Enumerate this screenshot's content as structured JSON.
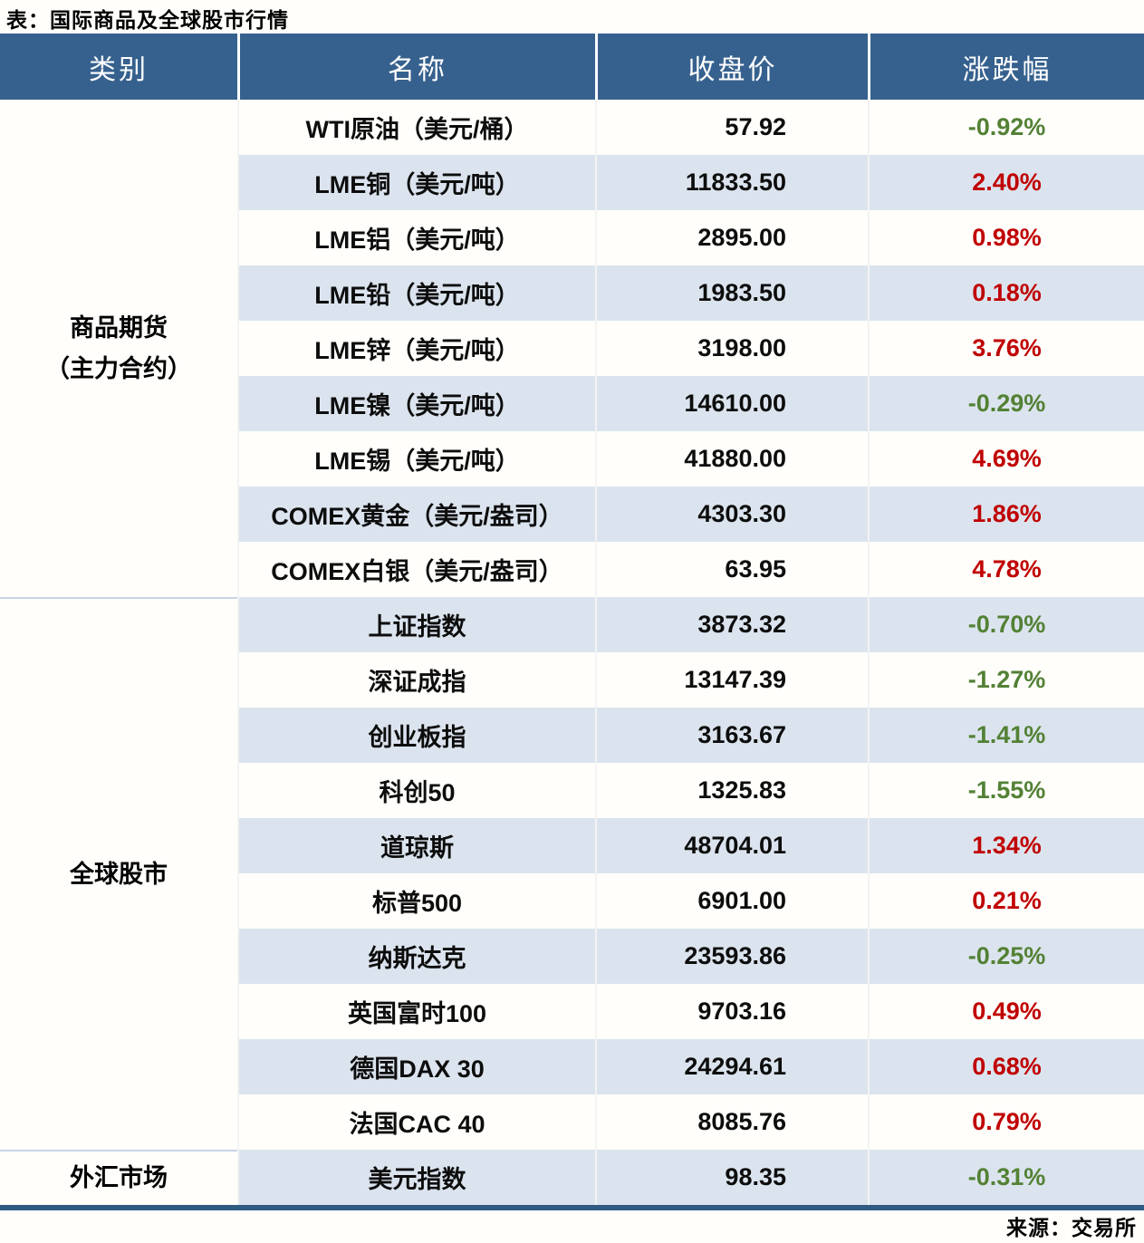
{
  "title": "表：国际商品及全球股市行情",
  "source": "来源：交易所",
  "colors": {
    "header_bg": "#36618e",
    "stripe_bg": "#dbe4ee",
    "up_red": "#c00000",
    "down_green": "#538135",
    "section_divider": "#c7d4e4",
    "bottom_bar": "#2f5a82"
  },
  "chart_data": {
    "type": "table",
    "title": "表：国际商品及全球股市行情",
    "columns": [
      "类别",
      "名称",
      "收盘价",
      "涨跌幅"
    ],
    "categories": [
      {
        "label": "商品期货（主力合约）",
        "label_lines": [
          "商品期货",
          "（主力合约）"
        ],
        "row_count": 9
      },
      {
        "label": "全球股市",
        "label_lines": [
          "全球股市"
        ],
        "row_count": 10
      },
      {
        "label": "外汇市场",
        "label_lines": [
          "外汇市场"
        ],
        "row_count": 1
      }
    ],
    "rows": [
      {
        "category": "商品期货（主力合约）",
        "name": "WTI原油（美元/桶）",
        "close": "57.92",
        "change": "-0.92%",
        "direction": "down"
      },
      {
        "category": "商品期货（主力合约）",
        "name": "LME铜（美元/吨）",
        "close": "11833.50",
        "change": "2.40%",
        "direction": "up"
      },
      {
        "category": "商品期货（主力合约）",
        "name": "LME铝（美元/吨）",
        "close": "2895.00",
        "change": "0.98%",
        "direction": "up"
      },
      {
        "category": "商品期货（主力合约）",
        "name": "LME铅（美元/吨）",
        "close": "1983.50",
        "change": "0.18%",
        "direction": "up"
      },
      {
        "category": "商品期货（主力合约）",
        "name": "LME锌（美元/吨）",
        "close": "3198.00",
        "change": "3.76%",
        "direction": "up"
      },
      {
        "category": "商品期货（主力合约）",
        "name": "LME镍（美元/吨）",
        "close": "14610.00",
        "change": "-0.29%",
        "direction": "down"
      },
      {
        "category": "商品期货（主力合约）",
        "name": "LME锡（美元/吨）",
        "close": "41880.00",
        "change": "4.69%",
        "direction": "up"
      },
      {
        "category": "商品期货（主力合约）",
        "name": "COMEX黄金（美元/盎司）",
        "close": "4303.30",
        "change": "1.86%",
        "direction": "up"
      },
      {
        "category": "商品期货（主力合约）",
        "name": "COMEX白银（美元/盎司）",
        "close": "63.95",
        "change": "4.78%",
        "direction": "up"
      },
      {
        "category": "全球股市",
        "name": "上证指数",
        "close": "3873.32",
        "change": "-0.70%",
        "direction": "down"
      },
      {
        "category": "全球股市",
        "name": "深证成指",
        "close": "13147.39",
        "change": "-1.27%",
        "direction": "down"
      },
      {
        "category": "全球股市",
        "name": "创业板指",
        "close": "3163.67",
        "change": "-1.41%",
        "direction": "down"
      },
      {
        "category": "全球股市",
        "name": "科创50",
        "close": "1325.83",
        "change": "-1.55%",
        "direction": "down"
      },
      {
        "category": "全球股市",
        "name": "道琼斯",
        "close": "48704.01",
        "change": "1.34%",
        "direction": "up"
      },
      {
        "category": "全球股市",
        "name": "标普500",
        "close": "6901.00",
        "change": "0.21%",
        "direction": "up"
      },
      {
        "category": "全球股市",
        "name": "纳斯达克",
        "close": "23593.86",
        "change": "-0.25%",
        "direction": "down"
      },
      {
        "category": "全球股市",
        "name": "英国富时100",
        "close": "9703.16",
        "change": "0.49%",
        "direction": "up"
      },
      {
        "category": "全球股市",
        "name": "德国DAX 30",
        "close": "24294.61",
        "change": "0.68%",
        "direction": "up"
      },
      {
        "category": "全球股市",
        "name": "法国CAC 40",
        "close": "8085.76",
        "change": "0.79%",
        "direction": "up"
      },
      {
        "category": "外汇市场",
        "name": "美元指数",
        "close": "98.35",
        "change": "-0.31%",
        "direction": "down"
      }
    ]
  }
}
